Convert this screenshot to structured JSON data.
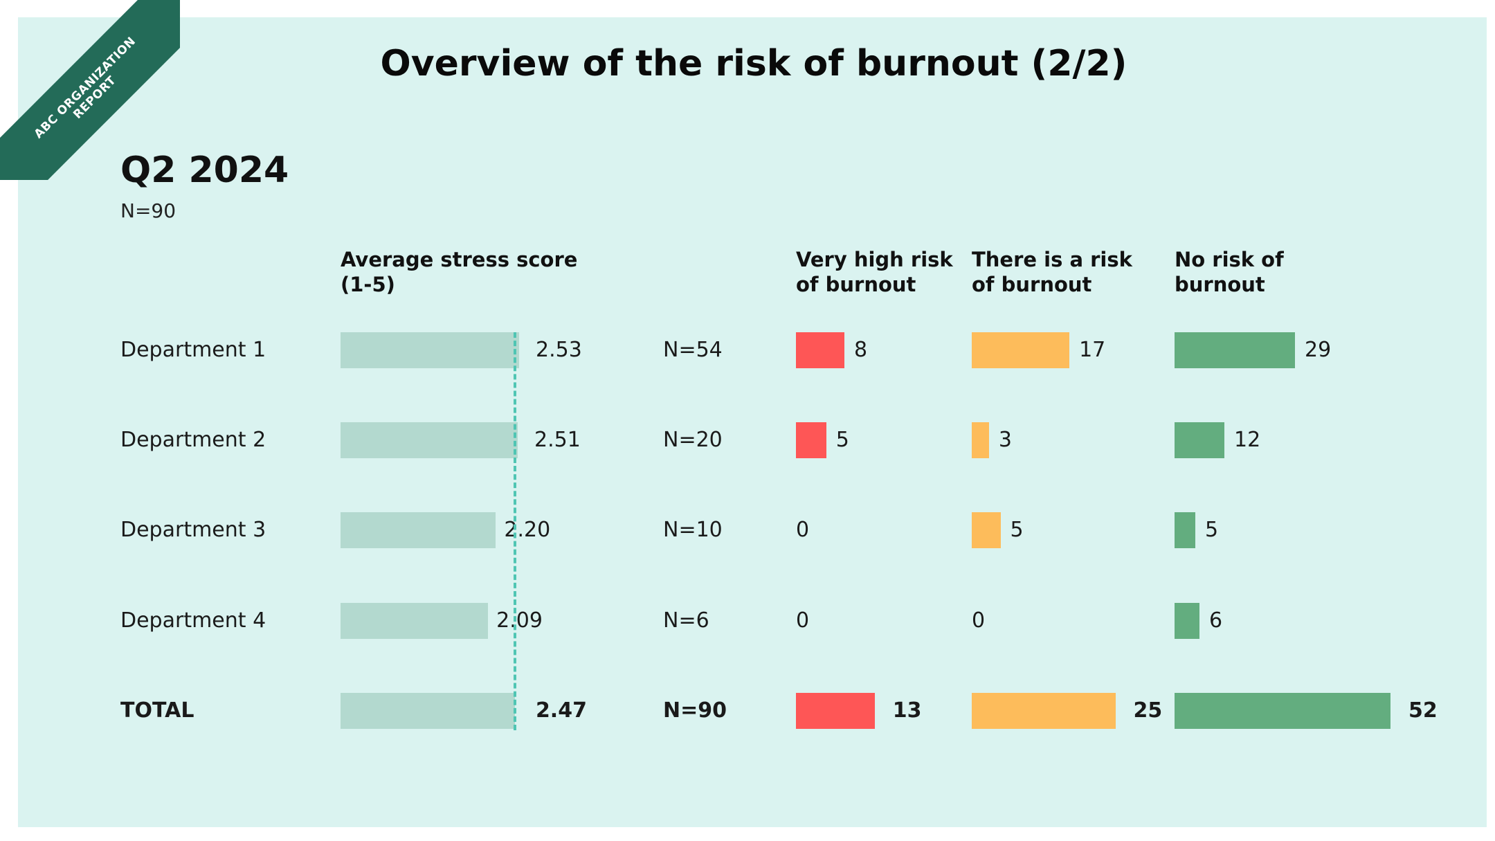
{
  "ribbon": {
    "line1": "ABC ORGANIZATION",
    "line2": "REPORT"
  },
  "title": "Overview of the risk of burnout (2/2)",
  "period": "Q2 2024",
  "period_n": "N=90",
  "colors": {
    "background": "#daf3f0",
    "stress_bar": "#b3d9cf",
    "avg_line": "#4fc5b3",
    "very_high": "#fe5656",
    "risk": "#fdbc5b",
    "no_risk": "#63ad7f",
    "ribbon": "#236b58"
  },
  "chart_data": {
    "type": "bar",
    "categories": [
      "Department 1",
      "Department 2",
      "Department 3",
      "Department 4",
      "TOTAL"
    ],
    "n_values": [
      "N=54",
      "N=20",
      "N=10",
      "N=6",
      "N=90"
    ],
    "headers": {
      "stress": [
        "Average stress score",
        "(1-5)"
      ],
      "very_high": [
        "Very high risk",
        "of burnout"
      ],
      "risk": [
        "There is a risk",
        "of burnout"
      ],
      "no_risk": [
        "No risk of",
        "burnout"
      ]
    },
    "series": [
      {
        "name": "Average stress score (1-5)",
        "key": "stress",
        "values": [
          2.53,
          2.51,
          2.2,
          2.09,
          2.47
        ],
        "labels": [
          "2.53",
          "2.51",
          "2.20",
          "2.09",
          "2.47"
        ]
      },
      {
        "name": "Very high risk of burnout",
        "key": "very_high",
        "values": [
          8,
          5,
          0,
          0,
          13
        ]
      },
      {
        "name": "There is a risk of burnout",
        "key": "risk",
        "values": [
          17,
          3,
          5,
          0,
          25
        ]
      },
      {
        "name": "No risk of burnout",
        "key": "no_risk",
        "values": [
          29,
          12,
          5,
          6,
          52
        ]
      }
    ],
    "reference_line": {
      "series": "stress",
      "value": 2.47
    }
  }
}
